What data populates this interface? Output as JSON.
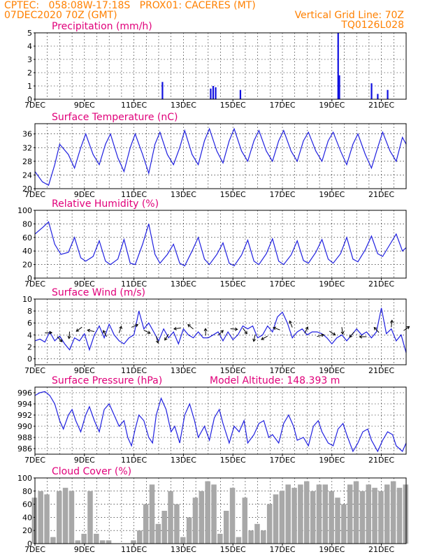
{
  "header": {
    "line1": "CPTEC:   058:08W-17:18S   PROX01: CACERES (MT)",
    "line2": "07DEC2020 70Z (GMT)",
    "grid_note": "Vertical Grid Line: 70Z",
    "code": "TQ0126L028"
  },
  "x_ticks": [
    "7DEC",
    "9DEC",
    "11DEC",
    "13DEC",
    "15DEC",
    "17DEC",
    "19DEC",
    "21DEC"
  ],
  "colors": {
    "header": "#ff8000",
    "title": "#e0007a",
    "line": "#2020e0",
    "cloud": "#a8a8a8",
    "bars": "#1010e0"
  },
  "chart_data": [
    {
      "type": "bar",
      "title": "Precipitation (mm/h)",
      "ylim": [
        0,
        5
      ],
      "yticks": [
        0,
        1,
        2,
        3,
        4,
        5
      ],
      "grid": true,
      "x": [
        12.15,
        14.1,
        14.2,
        14.3,
        15.3,
        19.25,
        19.3,
        20.6,
        20.85,
        21.25
      ],
      "values": [
        1.3,
        0.8,
        1.0,
        0.9,
        0.7,
        5.0,
        1.8,
        1.2,
        0.4,
        0.7
      ]
    },
    {
      "type": "line",
      "title": "Surface Temperature (nC)",
      "ylim": [
        20,
        39
      ],
      "yticks": [
        20,
        24,
        28,
        32,
        36
      ],
      "grid": true,
      "x": [
        7.0,
        7.3,
        7.55,
        7.8,
        8.0,
        8.35,
        8.6,
        8.85,
        9.05,
        9.35,
        9.6,
        9.85,
        10.05,
        10.35,
        10.6,
        10.85,
        11.05,
        11.35,
        11.6,
        11.85,
        12.05,
        12.35,
        12.6,
        12.85,
        13.05,
        13.35,
        13.6,
        13.85,
        14.05,
        14.35,
        14.6,
        14.85,
        15.05,
        15.35,
        15.6,
        15.85,
        16.05,
        16.35,
        16.6,
        16.85,
        17.05,
        17.35,
        17.6,
        17.85,
        18.05,
        18.35,
        18.6,
        18.85,
        19.05,
        19.35,
        19.6,
        19.85,
        20.05,
        20.35,
        20.6,
        20.85,
        21.05,
        21.35,
        21.6,
        21.85,
        22.0
      ],
      "values": [
        25,
        22,
        21,
        27,
        33,
        30,
        26,
        32,
        36,
        30,
        27,
        33,
        36,
        29,
        25,
        32,
        36,
        30,
        24.5,
        33,
        36.5,
        30,
        27,
        32,
        37,
        30,
        27,
        34,
        37.5,
        31,
        27.5,
        34,
        37.5,
        31,
        28,
        34,
        37,
        31,
        28,
        34,
        37,
        31,
        28,
        34,
        36.5,
        31,
        28,
        34,
        36.5,
        31,
        27,
        33,
        36,
        30,
        26,
        32,
        36.5,
        31,
        28,
        35,
        33
      ]
    },
    {
      "type": "line",
      "title": "Relative Humidity (%)",
      "ylim": [
        0,
        100
      ],
      "yticks": [
        0,
        20,
        40,
        60,
        80,
        100
      ],
      "grid": true,
      "x": [
        7.0,
        7.35,
        7.55,
        7.8,
        8.05,
        8.35,
        8.6,
        8.85,
        9.05,
        9.35,
        9.6,
        9.85,
        10.05,
        10.35,
        10.6,
        10.85,
        11.05,
        11.35,
        11.6,
        11.85,
        12.05,
        12.35,
        12.6,
        12.85,
        13.05,
        13.35,
        13.6,
        13.85,
        14.05,
        14.35,
        14.6,
        14.85,
        15.05,
        15.35,
        15.6,
        15.85,
        16.05,
        16.35,
        16.6,
        16.85,
        17.05,
        17.35,
        17.6,
        17.85,
        18.05,
        18.35,
        18.6,
        18.85,
        19.05,
        19.35,
        19.6,
        19.85,
        20.05,
        20.35,
        20.6,
        20.85,
        21.05,
        21.35,
        21.6,
        21.85,
        22.0
      ],
      "values": [
        65,
        76,
        83,
        50,
        35,
        38,
        60,
        30,
        25,
        32,
        55,
        25,
        20,
        28,
        57,
        22,
        20,
        50,
        80,
        35,
        22,
        35,
        50,
        22,
        18,
        40,
        60,
        28,
        20,
        35,
        52,
        22,
        18,
        34,
        56,
        25,
        20,
        36,
        58,
        25,
        20,
        34,
        55,
        26,
        22,
        38,
        57,
        28,
        22,
        36,
        60,
        28,
        24,
        42,
        62,
        36,
        32,
        50,
        65,
        40,
        45
      ]
    },
    {
      "type": "line",
      "title": "Surface Wind (m/s)",
      "ylim": [
        -1,
        10
      ],
      "yticks": [
        0,
        2,
        4,
        6,
        8,
        10
      ],
      "grid": true,
      "x": [
        7.0,
        7.2,
        7.4,
        7.6,
        7.8,
        8.0,
        8.2,
        8.4,
        8.6,
        8.8,
        9.0,
        9.2,
        9.4,
        9.6,
        9.8,
        10.0,
        10.2,
        10.4,
        10.6,
        10.8,
        11.0,
        11.2,
        11.4,
        11.6,
        11.8,
        12.0,
        12.2,
        12.4,
        12.6,
        12.8,
        13.0,
        13.2,
        13.4,
        13.6,
        13.8,
        14.0,
        14.2,
        14.4,
        14.6,
        14.8,
        15.0,
        15.2,
        15.4,
        15.6,
        15.8,
        16.0,
        16.2,
        16.4,
        16.6,
        16.8,
        17.0,
        17.2,
        17.4,
        17.6,
        17.8,
        18.0,
        18.2,
        18.4,
        18.6,
        18.8,
        19.0,
        19.2,
        19.4,
        19.6,
        19.8,
        20.0,
        20.2,
        20.4,
        20.6,
        20.8,
        21.0,
        21.2,
        21.4,
        21.6,
        21.8,
        22.0
      ],
      "values": [
        3,
        3.3,
        2.8,
        4.5,
        3,
        3.8,
        2.5,
        1.5,
        3.5,
        3,
        4.2,
        1.5,
        4,
        5.5,
        3.5,
        5.8,
        4,
        3,
        2.5,
        3.5,
        4,
        8,
        5,
        6,
        4.5,
        3,
        5,
        3.5,
        4.5,
        2.5,
        5,
        4,
        3.5,
        4.5,
        3.5,
        3.5,
        4,
        4.5,
        3,
        4.5,
        3.2,
        4,
        5.5,
        5,
        5.5,
        3.5,
        4,
        5.5,
        4.5,
        7,
        7.8,
        6,
        3.5,
        4.5,
        5,
        4,
        4.5,
        4.5,
        4.2,
        3.5,
        2.5,
        3.5,
        4,
        3,
        4,
        5,
        4,
        4.5,
        3.5,
        4.5,
        8.5,
        4.2,
        5,
        3,
        4,
        1
      ]
    },
    {
      "type": "line",
      "title": "Surface Pressure (hPa)",
      "annotation": "Model Altitude: 148.393 m",
      "ylim": [
        985,
        997
      ],
      "yticks": [
        986,
        988,
        990,
        992,
        994,
        996
      ],
      "grid": true,
      "x": [
        7.0,
        7.2,
        7.4,
        7.6,
        7.8,
        8.0,
        8.15,
        8.35,
        8.5,
        8.65,
        8.85,
        9.05,
        9.2,
        9.4,
        9.6,
        9.8,
        10.0,
        10.2,
        10.4,
        10.6,
        10.75,
        10.9,
        11.05,
        11.2,
        11.4,
        11.6,
        11.75,
        11.9,
        12.1,
        12.3,
        12.5,
        12.65,
        12.85,
        13.05,
        13.25,
        13.45,
        13.6,
        13.85,
        14.05,
        14.25,
        14.45,
        14.6,
        14.85,
        15.05,
        15.25,
        15.45,
        15.6,
        15.85,
        16.05,
        16.25,
        16.45,
        16.6,
        16.85,
        17.05,
        17.25,
        17.45,
        17.6,
        17.85,
        18.05,
        18.25,
        18.45,
        18.6,
        18.85,
        19.05,
        19.25,
        19.45,
        19.6,
        19.85,
        20.05,
        20.25,
        20.45,
        20.6,
        20.85,
        21.05,
        21.25,
        21.45,
        21.6,
        21.85,
        22.0
      ],
      "values": [
        995.5,
        996,
        996.2,
        995.5,
        994,
        991,
        989.5,
        992,
        993,
        991,
        989,
        992,
        993.5,
        991,
        989,
        993,
        994,
        992,
        990,
        991,
        988,
        986.5,
        989.5,
        992,
        991,
        988,
        987,
        992,
        995,
        993,
        989,
        990,
        987,
        992,
        994,
        991,
        988,
        990,
        987.5,
        991.5,
        993,
        990.5,
        987,
        990,
        989,
        991,
        987,
        988.5,
        990.5,
        991,
        988,
        988.5,
        987,
        990.5,
        992,
        990,
        987.5,
        988,
        986.5,
        990,
        991,
        989,
        987,
        986.5,
        989.5,
        990.5,
        988.5,
        985.5,
        987,
        989,
        989.5,
        987.5,
        985.5,
        987.5,
        989,
        988.5,
        986.5,
        985.5,
        987
      ]
    },
    {
      "type": "bar",
      "title": "Cloud Cover (%)",
      "ylim": [
        0,
        100
      ],
      "yticks": [
        0,
        20,
        40,
        60,
        80,
        100
      ],
      "grid": true,
      "x": [
        7.0,
        7.25,
        7.5,
        7.75,
        8.0,
        8.25,
        8.5,
        8.75,
        9.0,
        9.25,
        9.5,
        9.75,
        10.0,
        10.25,
        10.5,
        10.75,
        11.0,
        11.25,
        11.5,
        11.75,
        12.0,
        12.25,
        12.5,
        12.75,
        13.0,
        13.25,
        13.5,
        13.75,
        14.0,
        14.25,
        14.5,
        14.75,
        15.0,
        15.25,
        15.5,
        15.75,
        16.0,
        16.25,
        16.5,
        16.75,
        17.0,
        17.25,
        17.5,
        17.75,
        18.0,
        18.25,
        18.5,
        18.75,
        19.0,
        19.25,
        19.5,
        19.75,
        20.0,
        20.25,
        20.5,
        20.75,
        21.0,
        21.25,
        21.5,
        21.75,
        22.0
      ],
      "values": [
        70,
        80,
        75,
        10,
        80,
        85,
        80,
        5,
        15,
        80,
        15,
        5,
        5,
        0,
        0,
        0,
        5,
        20,
        60,
        90,
        30,
        50,
        80,
        60,
        10,
        40,
        70,
        80,
        95,
        90,
        15,
        50,
        85,
        10,
        70,
        20,
        30,
        20,
        60,
        75,
        80,
        90,
        85,
        90,
        95,
        80,
        90,
        90,
        80,
        70,
        60,
        90,
        95,
        80,
        90,
        85,
        80,
        90,
        95,
        85,
        90
      ]
    }
  ]
}
